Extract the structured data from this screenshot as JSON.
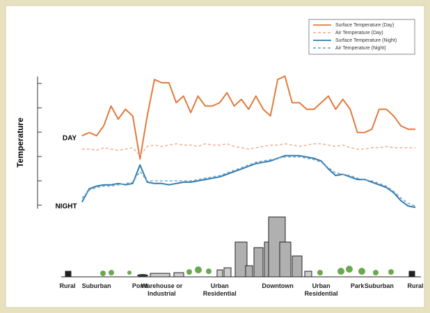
{
  "chart_data": {
    "type": "line",
    "y_label": "Temperature",
    "annotations": [
      "DAY",
      "NIGHT"
    ],
    "categories": [
      "Rural",
      null,
      null,
      null,
      "Suburban",
      null,
      null,
      null,
      null,
      null,
      "Pond",
      null,
      null,
      "Warehouse or Industrial",
      null,
      null,
      null,
      null,
      null,
      null,
      null,
      "Urban Residential",
      null,
      null,
      null,
      null,
      null,
      null,
      null,
      "Downtown",
      null,
      null,
      null,
      null,
      null,
      "Urban Residential",
      null,
      null,
      null,
      null,
      "Park",
      null,
      null,
      "Suburban",
      null,
      null,
      null,
      null,
      "Rural"
    ],
    "ylim": [
      0,
      105
    ],
    "series": [
      {
        "name": "Surface Temperature (Day)",
        "color": "#e07a3c",
        "dash": false,
        "values": [
          null,
          null,
          55,
          57.5,
          55,
          62.5,
          77.5,
          67.5,
          75,
          70,
          37.5,
          70,
          97.5,
          95,
          95,
          80,
          85,
          72.5,
          85,
          77.5,
          77.5,
          80,
          87.5,
          77.5,
          82.5,
          75,
          85,
          75,
          70,
          97.5,
          100,
          80,
          80,
          75,
          75,
          80,
          85,
          75,
          82.5,
          75,
          57.5,
          57.5,
          60,
          75,
          75,
          70,
          62.5,
          60,
          60
        ]
      },
      {
        "name": "Air Temperature (Day)",
        "color": "#efb497",
        "dash": true,
        "values": [
          null,
          null,
          45,
          45,
          44,
          46,
          45,
          44,
          45,
          46,
          40,
          47,
          48,
          47,
          48,
          49,
          48,
          48,
          47,
          49,
          48,
          48,
          49,
          47,
          46,
          45,
          46,
          47,
          48,
          48,
          49,
          48,
          47,
          48,
          49,
          49,
          48,
          47,
          48,
          46,
          45,
          45,
          46,
          46,
          47,
          46,
          46,
          46,
          46
        ]
      },
      {
        "name": "Surface Temperature (Night)",
        "color": "#2e7bb0",
        "dash": false,
        "values": [
          null,
          null,
          5,
          15,
          17,
          18,
          18,
          19,
          18,
          19,
          33,
          20,
          19,
          19,
          18,
          19,
          20,
          20,
          21,
          22,
          23,
          24,
          26,
          28,
          30,
          32,
          34,
          35,
          36,
          38,
          40,
          40,
          40,
          39,
          38,
          36,
          30,
          25,
          26,
          24,
          22,
          22,
          20,
          18,
          16,
          12,
          6,
          2,
          1
        ]
      },
      {
        "name": "Air Temperature (Night)",
        "color": "#7fa8c8",
        "dash": true,
        "values": [
          null,
          null,
          8,
          14,
          16,
          17,
          17,
          18,
          19,
          20,
          28,
          21,
          21,
          21,
          21,
          21,
          21,
          21,
          22,
          23,
          24,
          25,
          27,
          29,
          31,
          33,
          35,
          36,
          37,
          38,
          39,
          39,
          39,
          38,
          37,
          35,
          31,
          27,
          26,
          25,
          23,
          22,
          21,
          19,
          17,
          13,
          8,
          4,
          2
        ]
      }
    ],
    "legend": "top-right"
  }
}
